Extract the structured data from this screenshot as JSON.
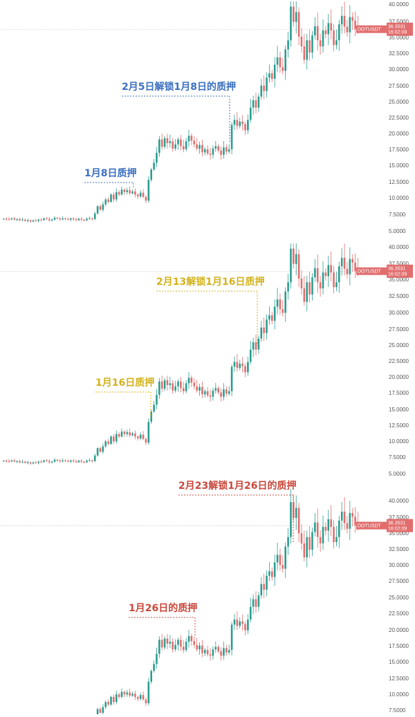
{
  "chart_data": [
    {
      "type": "candlestick",
      "symbol": "DOTUSDT",
      "last_price": "36.3531",
      "countdown": "16:02:09",
      "y_ticks": [
        "40.0000",
        "37.5000",
        "35.0000",
        "32.5000",
        "30.0000",
        "27.5000",
        "25.0000",
        "22.5000",
        "20.0000",
        "17.5000",
        "15.0000",
        "12.5000",
        "10.0000",
        "7.5000",
        "5.0000"
      ],
      "ylim": [
        3.0,
        40.5
      ],
      "annotations": [
        {
          "label": "1月8日质押",
          "color": "#3b6fbf",
          "candle_index": 48
        },
        {
          "label": "2月5日解锁1月8日的质押",
          "color": "#3b6fbf",
          "candle_index": 82
        }
      ]
    },
    {
      "type": "candlestick",
      "symbol": "DOTUSDT",
      "last_price": "36.3531",
      "countdown": "16:02:09",
      "y_ticks": [
        "40.0000",
        "37.5000",
        "35.0000",
        "32.5000",
        "30.0000",
        "27.5000",
        "25.0000",
        "22.5000",
        "20.0000",
        "17.5000",
        "15.0000",
        "12.5000",
        "10.0000",
        "7.5000",
        "5.0000"
      ],
      "ylim": [
        3.0,
        40.5
      ],
      "annotations": [
        {
          "label": "1月16日质押",
          "color": "#d4b21a",
          "candle_index": 54
        },
        {
          "label": "2月13解锁1月16日质押",
          "color": "#d4b21a",
          "candle_index": 92
        }
      ]
    },
    {
      "type": "candlestick",
      "symbol": "DOTUSDT",
      "last_price": "36.3531",
      "countdown": "16:02:09",
      "y_ticks": [
        "40.0000",
        "37.5000",
        "35.0000",
        "32.5000",
        "30.0000",
        "27.5000",
        "25.0000",
        "22.5000",
        "20.0000",
        "17.5000",
        "15.0000",
        "12.5000",
        "10.0000",
        "7.5000"
      ],
      "ylim": [
        7.0,
        41.0
      ],
      "annotations": [
        {
          "label": "1月26日的质押",
          "color": "#c9483b",
          "candle_index": 70
        },
        {
          "label": "2月23解锁1月26日的质押",
          "color": "#c9483b",
          "candle_index": 105
        }
      ]
    }
  ],
  "series": [
    5.45,
    5.4,
    5.35,
    5.5,
    5.3,
    5.4,
    5.2,
    5.3,
    5.1,
    5.2,
    5.0,
    5.15,
    5.1,
    5.3,
    5.25,
    5.5,
    5.4,
    5.2,
    5.3,
    5.6,
    5.5,
    5.35,
    5.5,
    5.4,
    5.3,
    5.5,
    5.35,
    5.2,
    5.45,
    5.3,
    5.2,
    5.45,
    5.5,
    5.4,
    6.3,
    7.5,
    6.9,
    7.8,
    8.6,
    8.2,
    9.4,
    8.6,
    9.8,
    9.4,
    10.2,
    9.8,
    10.1,
    9.6,
    9.9,
    9.4,
    9.1,
    9.7,
    9.0,
    8.4,
    11.8,
    13.5,
    14.6,
    16.2,
    18.4,
    17.2,
    18.6,
    17.8,
    18.1,
    16.9,
    17.6,
    18.4,
    17.3,
    16.8,
    18.1,
    19.0,
    18.2,
    17.6,
    16.9,
    17.5,
    16.3,
    16.8,
    16.1,
    15.9,
    16.9,
    17.3,
    16.6,
    15.9,
    17.1,
    16.4,
    16.8,
    20.8,
    21.6,
    20.6,
    21.3,
    20.9,
    19.9,
    21.6,
    23.6,
    24.8,
    23.6,
    25.4,
    27.2,
    26.3,
    28.5,
    29.2,
    28.3,
    30.6,
    31.8,
    30.2,
    29.6,
    33.1,
    34.6,
    40.1,
    37.6,
    39.2,
    35.2,
    33.6,
    31.4,
    34.6,
    32.6,
    35.4,
    36.9,
    34.6,
    33.6,
    36.2,
    35.6,
    37.4,
    36.2,
    33.8,
    34.6,
    37.2,
    38.6,
    36.8,
    35.9,
    38.4,
    37.8,
    36.4,
    36.35
  ]
}
